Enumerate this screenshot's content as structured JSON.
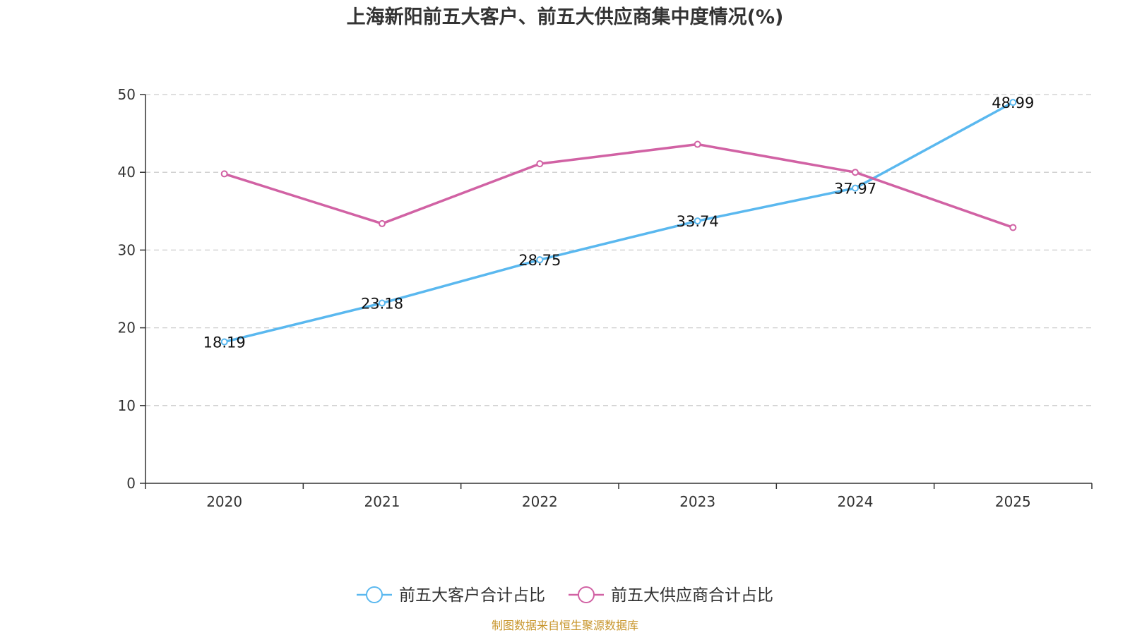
{
  "chart_data": {
    "type": "line",
    "title": "上海新阳前五大客户、前五大供应商集中度情况(%)",
    "categories": [
      "2020",
      "2021",
      "2022",
      "2023",
      "2024",
      "2025"
    ],
    "ylim": [
      0,
      50
    ],
    "yticks": [
      0,
      10,
      20,
      30,
      40,
      50
    ],
    "grid": true,
    "legend_position": "bottom-center",
    "series": [
      {
        "name": "前五大客户合计占比",
        "color": "#5ab8ef",
        "values": [
          18.19,
          23.18,
          28.75,
          33.74,
          37.97,
          48.99
        ],
        "data_labels": [
          "18.19",
          "23.18",
          "28.75",
          "33.74",
          "37.97",
          "48.99"
        ]
      },
      {
        "name": "前五大供应商合计占比",
        "color": "#d162a4",
        "values": [
          39.8,
          33.4,
          41.1,
          43.6,
          40.0,
          32.9
        ],
        "data_labels": []
      }
    ]
  },
  "source_note": "制图数据来自恒生聚源数据库",
  "source_color": "#c8962d",
  "axis_color": "#333333",
  "grid_color": "#cccccc"
}
